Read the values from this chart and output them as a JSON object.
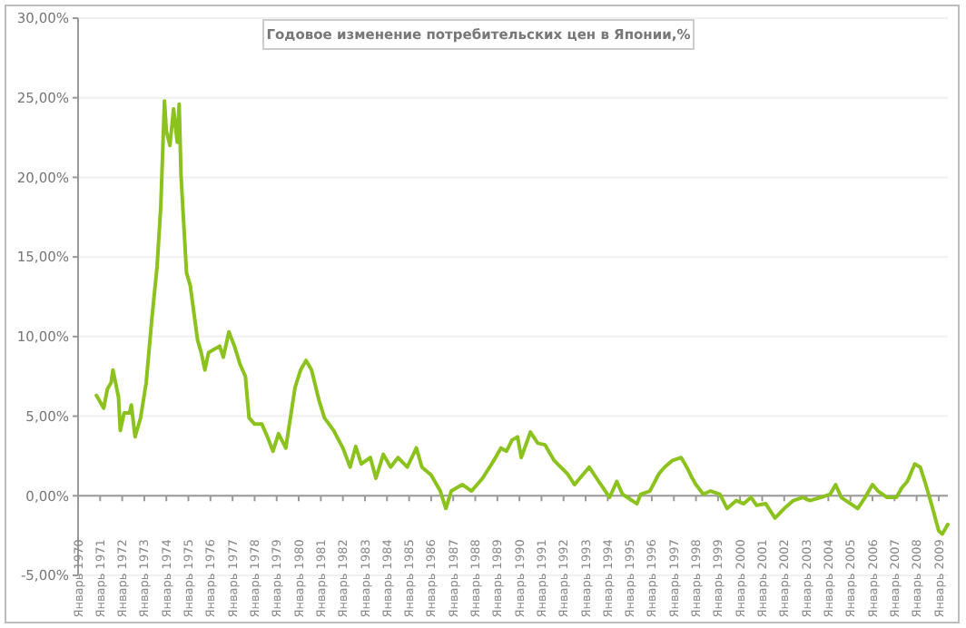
{
  "chart_data": {
    "type": "line",
    "title": "Годовое изменение потребительских цен в Японии,%",
    "xlim": [
      "1970-01",
      "2009-06"
    ],
    "xticks": [
      {
        "value": "1970-01",
        "label": "Январь 1970"
      },
      {
        "value": "1971-01",
        "label": "Январь 1971"
      },
      {
        "value": "1972-01",
        "label": "Январь 1972"
      },
      {
        "value": "1973-01",
        "label": "Январь 1973"
      },
      {
        "value": "1974-01",
        "label": "Январь 1974"
      },
      {
        "value": "1975-01",
        "label": "Январь 1975"
      },
      {
        "value": "1976-01",
        "label": "Январь 1976"
      },
      {
        "value": "1977-01",
        "label": "Январь 1977"
      },
      {
        "value": "1978-01",
        "label": "Январь 1978"
      },
      {
        "value": "1979-01",
        "label": "Январь 1979"
      },
      {
        "value": "1980-01",
        "label": "Январь 1980"
      },
      {
        "value": "1981-01",
        "label": "Январь 1981"
      },
      {
        "value": "1982-01",
        "label": "Январь 1982"
      },
      {
        "value": "1983-01",
        "label": "Январь 1983"
      },
      {
        "value": "1984-01",
        "label": "Январь 1984"
      },
      {
        "value": "1985-01",
        "label": "Январь 1985"
      },
      {
        "value": "1986-01",
        "label": "Январь 1986"
      },
      {
        "value": "1987-01",
        "label": "Январь 1987"
      },
      {
        "value": "1988-01",
        "label": "Январь 1988"
      },
      {
        "value": "1989-01",
        "label": "Январь 1989"
      },
      {
        "value": "1990-01",
        "label": "Январь 1990"
      },
      {
        "value": "1991-01",
        "label": "Январь 1991"
      },
      {
        "value": "1992-01",
        "label": "Январь 1992"
      },
      {
        "value": "1993-01",
        "label": "Январь 1993"
      },
      {
        "value": "1994-01",
        "label": "Январь 1994"
      },
      {
        "value": "1995-01",
        "label": "Январь 1995"
      },
      {
        "value": "1996-01",
        "label": "Январь 1996"
      },
      {
        "value": "1997-01",
        "label": "Январь 1997"
      },
      {
        "value": "1998-01",
        "label": "Январь 1998"
      },
      {
        "value": "1999-01",
        "label": "Январь 1999"
      },
      {
        "value": "2000-01",
        "label": "Январь 2000"
      },
      {
        "value": "2001-01",
        "label": "Январь 2001"
      },
      {
        "value": "2002-01",
        "label": "Январь 2002"
      },
      {
        "value": "2003-01",
        "label": "Январь 2003"
      },
      {
        "value": "2004-01",
        "label": "Январь 2004"
      },
      {
        "value": "2005-01",
        "label": "Январь 2005"
      },
      {
        "value": "2006-01",
        "label": "Январь 2006"
      },
      {
        "value": "2007-01",
        "label": "Январь 2007"
      },
      {
        "value": "2008-01",
        "label": "Январь 2008"
      },
      {
        "value": "2009-01",
        "label": "Январь 2009"
      }
    ],
    "ylim": [
      -5,
      30
    ],
    "yticks": [
      {
        "value": -5,
        "label": "-5,00%"
      },
      {
        "value": 0,
        "label": "0,00%"
      },
      {
        "value": 5,
        "label": "5,00%"
      },
      {
        "value": 10,
        "label": "10,00%"
      },
      {
        "value": 15,
        "label": "15,00%"
      },
      {
        "value": 20,
        "label": "20,00%"
      },
      {
        "value": 25,
        "label": "25,00%"
      },
      {
        "value": 30,
        "label": "30,00%"
      }
    ],
    "grid": "y",
    "series": [
      {
        "color": "#8cc21e",
        "x": [
          "1970-11",
          "1971-03",
          "1971-05",
          "1971-07",
          "1971-08",
          "1971-11",
          "1971-12",
          "1972-02",
          "1972-05",
          "1972-06",
          "1972-08",
          "1972-11",
          "1973-02",
          "1973-05",
          "1973-06",
          "1973-08",
          "1973-10",
          "1973-12",
          "1974-01",
          "1974-03",
          "1974-05",
          "1974-07",
          "1974-08",
          "1974-09",
          "1974-12",
          "1975-02",
          "1975-06",
          "1975-08",
          "1975-10",
          "1975-12",
          "1976-06",
          "1976-08",
          "1976-11",
          "1977-02",
          "1977-05",
          "1977-08",
          "1977-10",
          "1978-01",
          "1978-05",
          "1978-08",
          "1978-11",
          "1979-02",
          "1979-06",
          "1979-11",
          "1980-02",
          "1980-05",
          "1980-08",
          "1980-12",
          "1981-03",
          "1981-08",
          "1982-01",
          "1982-05",
          "1982-08",
          "1982-11",
          "1983-04",
          "1983-07",
          "1983-11",
          "1984-03",
          "1984-07",
          "1984-12",
          "1985-05",
          "1985-08",
          "1986-01",
          "1986-06",
          "1986-09",
          "1986-12",
          "1987-06",
          "1987-11",
          "1988-05",
          "1988-11",
          "1989-03",
          "1989-06",
          "1989-09",
          "1989-12",
          "1990-02",
          "1990-07",
          "1990-11",
          "1991-03",
          "1991-08",
          "1992-03",
          "1992-07",
          "1993-03",
          "1993-07",
          "1994-02",
          "1994-06",
          "1994-09",
          "1995-05",
          "1995-07",
          "1995-12",
          "1996-05",
          "1996-08",
          "1996-12",
          "1997-05",
          "1997-08",
          "1997-11",
          "1998-01",
          "1998-05",
          "1998-09",
          "1999-02",
          "1999-06",
          "1999-11",
          "2000-03",
          "2000-07",
          "2000-10",
          "2001-03",
          "2001-08",
          "2002-01",
          "2002-06",
          "2002-11",
          "2003-03",
          "2003-09",
          "2004-02",
          "2004-05",
          "2004-08",
          "2005-05",
          "2005-09",
          "2006-01",
          "2006-04",
          "2006-09",
          "2007-02",
          "2007-05",
          "2007-08",
          "2007-12",
          "2008-03",
          "2008-06",
          "2008-09",
          "2009-01",
          "2009-03",
          "2009-06"
        ],
        "values": [
          6.3,
          5.5,
          6.7,
          7.1,
          7.9,
          6.2,
          4.1,
          5.2,
          5.2,
          5.7,
          3.7,
          4.9,
          7.1,
          10.9,
          12.1,
          14.4,
          18.2,
          24.8,
          22.9,
          22.0,
          24.3,
          22.2,
          24.6,
          20.1,
          14.0,
          13.2,
          9.8,
          9.0,
          7.9,
          9.0,
          9.4,
          8.7,
          10.3,
          9.4,
          8.3,
          7.5,
          4.9,
          4.5,
          4.5,
          3.7,
          2.8,
          3.9,
          3.0,
          6.8,
          7.9,
          8.5,
          7.9,
          6.0,
          4.9,
          4.1,
          3.0,
          1.8,
          3.1,
          2.0,
          2.4,
          1.1,
          2.6,
          1.8,
          2.4,
          1.8,
          3.0,
          1.8,
          1.3,
          0.3,
          -0.8,
          0.3,
          0.7,
          0.3,
          1.1,
          2.2,
          3.0,
          2.8,
          3.5,
          3.7,
          2.4,
          4.0,
          3.3,
          3.2,
          2.2,
          1.4,
          0.7,
          1.8,
          1.1,
          -0.1,
          0.9,
          0.1,
          -0.5,
          0.1,
          0.3,
          1.4,
          1.8,
          2.2,
          2.4,
          1.8,
          1.1,
          0.7,
          0.1,
          0.3,
          0.1,
          -0.8,
          -0.3,
          -0.5,
          -0.1,
          -0.6,
          -0.5,
          -1.4,
          -0.8,
          -0.3,
          -0.1,
          -0.3,
          -0.1,
          0.1,
          0.7,
          -0.1,
          -0.8,
          -0.1,
          0.7,
          0.3,
          -0.1,
          -0.1,
          0.5,
          0.9,
          2.0,
          1.8,
          0.7,
          -0.5,
          -2.2,
          -2.4,
          -1.8
        ]
      }
    ]
  }
}
